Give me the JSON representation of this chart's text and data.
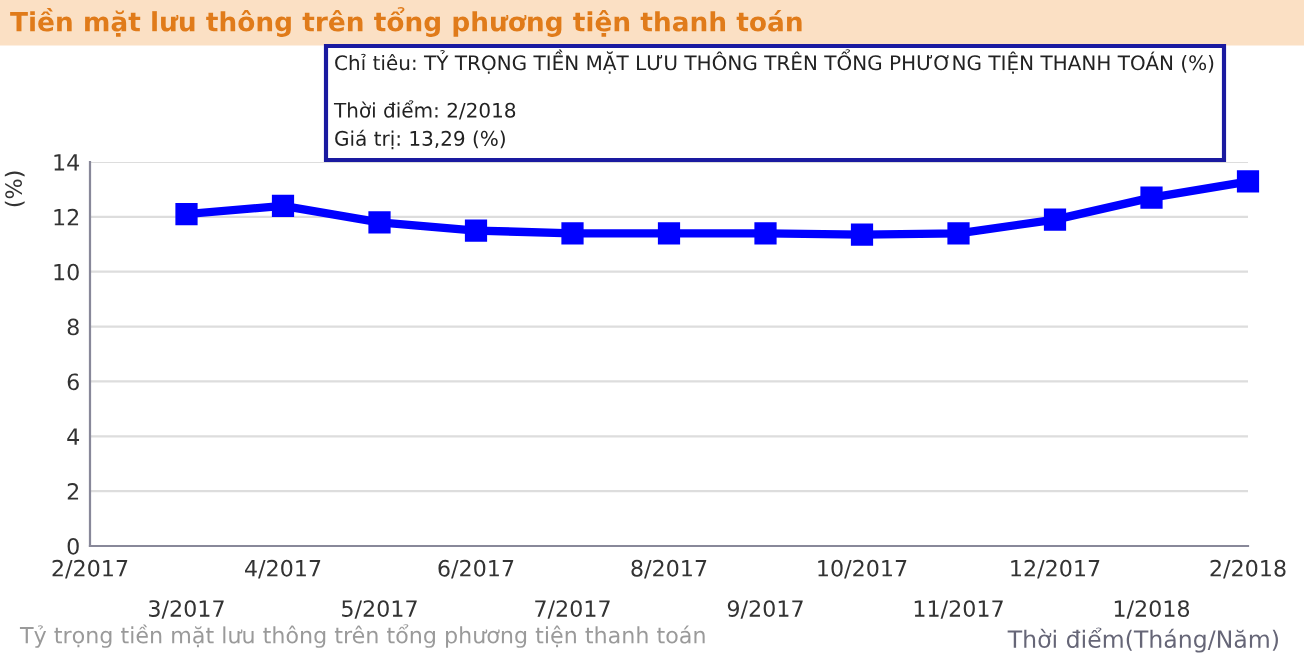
{
  "chart_data": {
    "type": "line",
    "title": "Tiền mặt lưu thông trên tổng phương tiện thanh toán",
    "subtitle": "Tỷ trọng tiền mặt lưu thông trên tổng phương tiện thanh toán",
    "ylabel": "(%)",
    "xlabel": "Thời điểm(Tháng/Năm)",
    "categories": [
      "2/2017",
      "3/2017",
      "4/2017",
      "5/2017",
      "6/2017",
      "7/2017",
      "8/2017",
      "9/2017",
      "10/2017",
      "11/2017",
      "12/2017",
      "1/2018",
      "2/2018"
    ],
    "series": [
      {
        "color": "#0000ff",
        "values": [
          null,
          12.1,
          12.4,
          11.8,
          11.5,
          11.4,
          11.4,
          11.4,
          11.35,
          11.4,
          11.9,
          12.7,
          13.29
        ]
      }
    ],
    "ylim": [
      0,
      14
    ],
    "yticks": [
      0,
      2,
      4,
      6,
      8,
      10,
      12,
      14
    ],
    "grid": "y",
    "marker": "square",
    "line_style": "solid",
    "annotations": [
      "Chỉ tiêu: TỶ TRỌNG TIỀN MẶT LƯU THÔNG TRÊN TỔNG PHƯƠNG TIỆN THANH TOÁN (%)",
      "Thời điểm: 2/2018",
      "Giá trị: 13,29 (%)"
    ]
  }
}
